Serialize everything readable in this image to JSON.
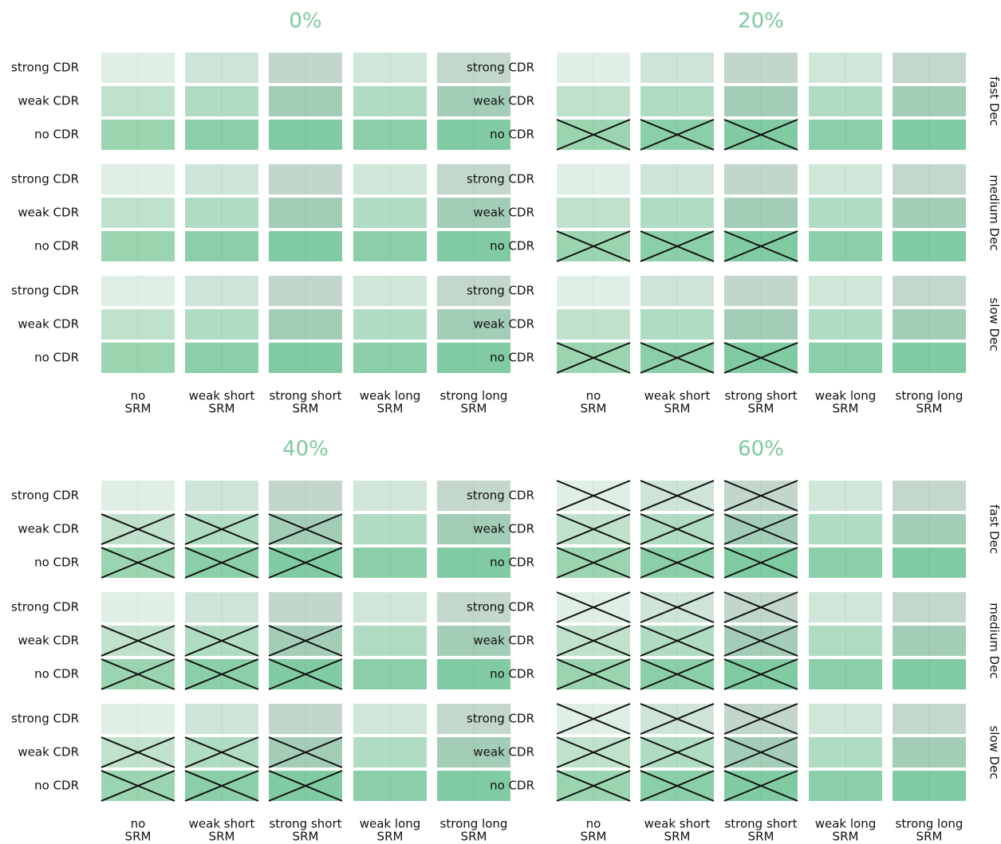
{
  "panels": [
    {
      "title": "0%",
      "crossed": [
        [
          false,
          false,
          false,
          false,
          false
        ],
        [
          false,
          false,
          false,
          false,
          false
        ],
        [
          false,
          false,
          false,
          false,
          false
        ],
        [
          false,
          false,
          false,
          false,
          false
        ],
        [
          false,
          false,
          false,
          false,
          false
        ],
        [
          false,
          false,
          false,
          false,
          false
        ],
        [
          false,
          false,
          false,
          false,
          false
        ],
        [
          false,
          false,
          false,
          false,
          false
        ],
        [
          false,
          false,
          false,
          false,
          false
        ]
      ]
    },
    {
      "title": "20%",
      "crossed": [
        [
          false,
          false,
          false,
          false,
          false
        ],
        [
          false,
          false,
          false,
          false,
          false
        ],
        [
          true,
          true,
          true,
          false,
          false
        ],
        [
          false,
          false,
          false,
          false,
          false
        ],
        [
          false,
          false,
          false,
          false,
          false
        ],
        [
          true,
          true,
          true,
          false,
          false
        ],
        [
          false,
          false,
          false,
          false,
          false
        ],
        [
          false,
          false,
          false,
          false,
          false
        ],
        [
          true,
          true,
          true,
          false,
          false
        ]
      ]
    },
    {
      "title": "40%",
      "crossed": [
        [
          false,
          false,
          false,
          false,
          false
        ],
        [
          true,
          true,
          true,
          false,
          false
        ],
        [
          true,
          true,
          true,
          false,
          false
        ],
        [
          false,
          false,
          false,
          false,
          false
        ],
        [
          true,
          true,
          true,
          false,
          false
        ],
        [
          true,
          true,
          true,
          false,
          false
        ],
        [
          false,
          false,
          false,
          false,
          false
        ],
        [
          true,
          true,
          true,
          false,
          false
        ],
        [
          true,
          true,
          true,
          false,
          false
        ]
      ]
    },
    {
      "title": "60%",
      "crossed": [
        [
          true,
          true,
          true,
          false,
          false
        ],
        [
          true,
          true,
          true,
          false,
          false
        ],
        [
          true,
          true,
          true,
          false,
          false
        ],
        [
          true,
          true,
          true,
          false,
          false
        ],
        [
          true,
          true,
          true,
          false,
          false
        ],
        [
          true,
          true,
          true,
          false,
          false
        ],
        [
          true,
          true,
          true,
          false,
          false
        ],
        [
          true,
          true,
          true,
          false,
          false
        ],
        [
          true,
          true,
          true,
          false,
          false
        ]
      ]
    }
  ],
  "row_labels": [
    "strong CDR",
    "weak CDR",
    "no CDR"
  ],
  "column_labels": [
    [
      "no",
      "SRM"
    ],
    [
      "weak short",
      "SRM"
    ],
    [
      "strong short",
      "SRM"
    ],
    [
      "weak long",
      "SRM"
    ],
    [
      "strong long",
      "SRM"
    ]
  ],
  "group_labels": [
    "fast Dec",
    "medium Dec",
    "slow Dec"
  ],
  "cell_colors": [
    [
      "#e0efe6",
      "#cfe4d8",
      "#c2d6cb",
      "#d0e6d9",
      "#c3d7cc"
    ],
    [
      "#c0e2cc",
      "#b0dcc3",
      "#a3cdb6",
      "#b0dcc3",
      "#a3cdb6"
    ],
    [
      "#9ad5b0",
      "#8bcfa8",
      "#80cba2",
      "#8bcfa8",
      "#80cba2"
    ]
  ],
  "title_color": "#7fc99f",
  "cross_color": "#111111"
}
